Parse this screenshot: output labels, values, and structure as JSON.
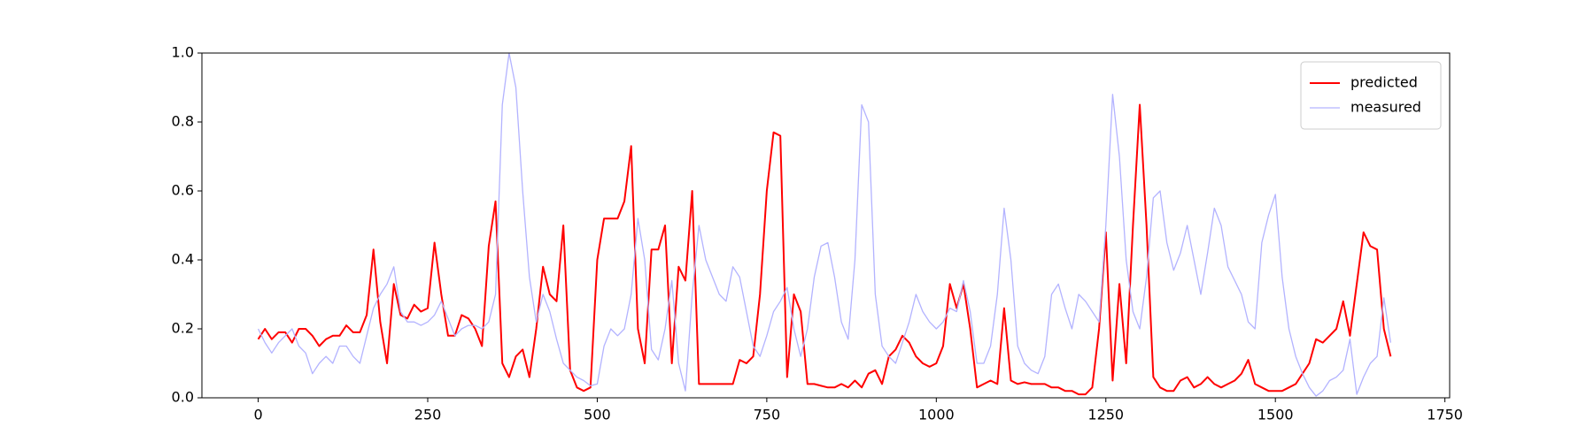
{
  "chart_data": {
    "type": "line",
    "x": [
      0,
      10,
      20,
      30,
      40,
      50,
      60,
      70,
      80,
      90,
      100,
      110,
      120,
      130,
      140,
      150,
      160,
      170,
      180,
      190,
      200,
      210,
      220,
      230,
      240,
      250,
      260,
      270,
      280,
      290,
      300,
      310,
      320,
      330,
      340,
      350,
      360,
      370,
      380,
      390,
      400,
      410,
      420,
      430,
      440,
      450,
      460,
      470,
      480,
      490,
      500,
      510,
      520,
      530,
      540,
      550,
      560,
      570,
      580,
      590,
      600,
      610,
      620,
      630,
      640,
      650,
      660,
      670,
      680,
      690,
      700,
      710,
      720,
      730,
      740,
      750,
      760,
      770,
      780,
      790,
      800,
      810,
      820,
      830,
      840,
      850,
      860,
      870,
      880,
      890,
      900,
      910,
      920,
      930,
      940,
      950,
      960,
      970,
      980,
      990,
      1000,
      1010,
      1020,
      1030,
      1040,
      1050,
      1060,
      1070,
      1080,
      1090,
      1100,
      1110,
      1120,
      1130,
      1140,
      1150,
      1160,
      1170,
      1180,
      1190,
      1200,
      1210,
      1220,
      1230,
      1240,
      1250,
      1260,
      1270,
      1280,
      1290,
      1300,
      1310,
      1320,
      1330,
      1340,
      1350,
      1360,
      1370,
      1380,
      1390,
      1400,
      1410,
      1420,
      1430,
      1440,
      1450,
      1460,
      1470,
      1480,
      1490,
      1500,
      1510,
      1520,
      1530,
      1540,
      1550,
      1560,
      1570,
      1580,
      1590,
      1600,
      1610,
      1620,
      1630,
      1640,
      1650,
      1660,
      1670
    ],
    "series": [
      {
        "name": "predicted",
        "color": "#ff0000",
        "values": [
          0.17,
          0.2,
          0.17,
          0.19,
          0.19,
          0.16,
          0.2,
          0.2,
          0.18,
          0.15,
          0.17,
          0.18,
          0.18,
          0.21,
          0.19,
          0.19,
          0.24,
          0.43,
          0.22,
          0.1,
          0.33,
          0.24,
          0.23,
          0.27,
          0.25,
          0.26,
          0.45,
          0.3,
          0.18,
          0.18,
          0.24,
          0.23,
          0.2,
          0.15,
          0.44,
          0.57,
          0.1,
          0.06,
          0.12,
          0.14,
          0.06,
          0.2,
          0.38,
          0.3,
          0.28,
          0.5,
          0.08,
          0.03,
          0.02,
          0.03,
          0.4,
          0.52,
          0.52,
          0.52,
          0.57,
          0.73,
          0.2,
          0.1,
          0.43,
          0.43,
          0.5,
          0.1,
          0.38,
          0.34,
          0.6,
          0.04,
          0.04,
          0.04,
          0.04,
          0.04,
          0.04,
          0.11,
          0.1,
          0.12,
          0.3,
          0.6,
          0.77,
          0.76,
          0.06,
          0.3,
          0.25,
          0.04,
          0.04,
          0.035,
          0.03,
          0.03,
          0.04,
          0.03,
          0.05,
          0.03,
          0.07,
          0.08,
          0.04,
          0.12,
          0.14,
          0.18,
          0.16,
          0.12,
          0.1,
          0.09,
          0.1,
          0.15,
          0.33,
          0.26,
          0.33,
          0.2,
          0.03,
          0.04,
          0.05,
          0.04,
          0.26,
          0.05,
          0.04,
          0.045,
          0.04,
          0.04,
          0.04,
          0.03,
          0.03,
          0.02,
          0.02,
          0.01,
          0.01,
          0.03,
          0.2,
          0.48,
          0.05,
          0.33,
          0.1,
          0.5,
          0.85,
          0.5,
          0.06,
          0.03,
          0.02,
          0.02,
          0.05,
          0.06,
          0.03,
          0.04,
          0.06,
          0.04,
          0.03,
          0.04,
          0.05,
          0.07,
          0.11,
          0.04,
          0.03,
          0.02,
          0.02,
          0.02,
          0.03,
          0.04,
          0.07,
          0.1,
          0.17,
          0.16,
          0.18,
          0.2,
          0.28,
          0.18,
          0.33,
          0.48,
          0.44,
          0.43,
          0.2,
          0.12
        ]
      },
      {
        "name": "measured",
        "color": "#b3b3ff",
        "values": [
          0.2,
          0.16,
          0.13,
          0.16,
          0.18,
          0.2,
          0.15,
          0.13,
          0.07,
          0.1,
          0.12,
          0.1,
          0.15,
          0.15,
          0.12,
          0.1,
          0.18,
          0.26,
          0.3,
          0.33,
          0.38,
          0.25,
          0.22,
          0.22,
          0.21,
          0.22,
          0.24,
          0.28,
          0.23,
          0.18,
          0.2,
          0.21,
          0.21,
          0.2,
          0.22,
          0.3,
          0.85,
          1.0,
          0.9,
          0.6,
          0.35,
          0.22,
          0.3,
          0.25,
          0.17,
          0.1,
          0.08,
          0.06,
          0.05,
          0.035,
          0.04,
          0.15,
          0.2,
          0.18,
          0.2,
          0.3,
          0.52,
          0.4,
          0.14,
          0.11,
          0.2,
          0.34,
          0.1,
          0.02,
          0.3,
          0.5,
          0.4,
          0.35,
          0.3,
          0.28,
          0.38,
          0.35,
          0.25,
          0.15,
          0.12,
          0.18,
          0.25,
          0.28,
          0.32,
          0.2,
          0.12,
          0.2,
          0.35,
          0.44,
          0.45,
          0.35,
          0.22,
          0.17,
          0.4,
          0.85,
          0.8,
          0.3,
          0.15,
          0.12,
          0.1,
          0.16,
          0.22,
          0.3,
          0.25,
          0.22,
          0.2,
          0.22,
          0.26,
          0.25,
          0.34,
          0.25,
          0.1,
          0.1,
          0.15,
          0.3,
          0.55,
          0.4,
          0.15,
          0.1,
          0.08,
          0.07,
          0.12,
          0.3,
          0.33,
          0.26,
          0.2,
          0.3,
          0.28,
          0.25,
          0.22,
          0.5,
          0.88,
          0.7,
          0.4,
          0.25,
          0.2,
          0.35,
          0.58,
          0.6,
          0.45,
          0.37,
          0.42,
          0.5,
          0.4,
          0.3,
          0.42,
          0.55,
          0.5,
          0.38,
          0.34,
          0.3,
          0.22,
          0.2,
          0.45,
          0.53,
          0.59,
          0.35,
          0.2,
          0.12,
          0.07,
          0.03,
          0.005,
          0.02,
          0.05,
          0.06,
          0.08,
          0.17,
          0.01,
          0.06,
          0.1,
          0.12,
          0.29,
          0.16
        ]
      }
    ],
    "xlim": [
      -83,
      1757
    ],
    "xticks": [
      0,
      250,
      500,
      750,
      1000,
      1250,
      1500,
      1750
    ],
    "ylim": [
      0,
      1
    ],
    "yticks": [
      {
        "value": 0,
        "label": "0.0"
      },
      0.2,
      0.4,
      0.6,
      0.8,
      {
        "value": 1,
        "label": "1.0"
      }
    ],
    "legend": "upper right"
  }
}
